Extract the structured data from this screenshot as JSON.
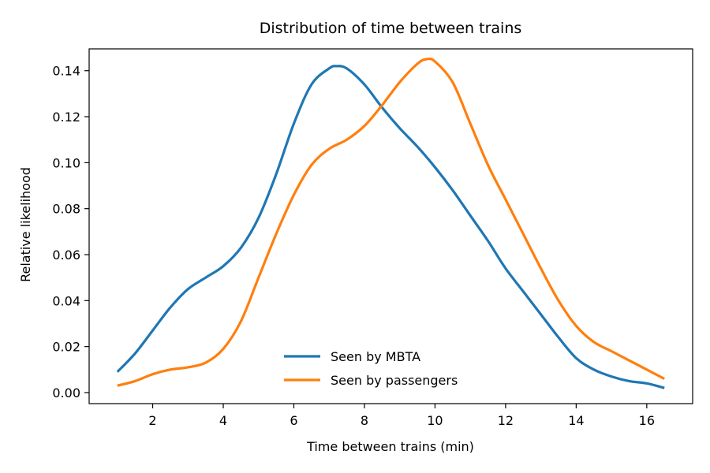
{
  "chart_data": {
    "type": "line",
    "title": "Distribution of time between trains",
    "xlabel": "Time between trains (min)",
    "ylabel": "Relative likelihood",
    "xlim": [
      0.2,
      17.3
    ],
    "ylim": [
      -0.0048,
      0.1495
    ],
    "x_ticks": [
      2,
      4,
      6,
      8,
      10,
      12,
      14,
      16
    ],
    "x_tick_labels": [
      "2",
      "4",
      "6",
      "8",
      "10",
      "12",
      "14",
      "16"
    ],
    "y_ticks": [
      0.0,
      0.02,
      0.04,
      0.06,
      0.08,
      0.1,
      0.12,
      0.14
    ],
    "y_tick_labels": [
      "0.00",
      "0.02",
      "0.04",
      "0.06",
      "0.08",
      "0.10",
      "0.12",
      "0.14"
    ],
    "grid": false,
    "legend_position": "lower center",
    "series": [
      {
        "name": "Seen by MBTA",
        "color": "#1f77b4",
        "x": [
          1.0,
          1.5,
          2.0,
          2.5,
          3.0,
          3.5,
          4.0,
          4.5,
          5.0,
          5.5,
          6.0,
          6.5,
          7.0,
          7.2,
          7.5,
          8.0,
          8.5,
          9.0,
          9.5,
          10.0,
          10.5,
          11.0,
          11.5,
          12.0,
          12.5,
          13.0,
          13.5,
          14.0,
          14.5,
          15.0,
          15.5,
          16.0,
          16.5
        ],
        "y": [
          0.009,
          0.017,
          0.027,
          0.037,
          0.045,
          0.05,
          0.055,
          0.063,
          0.076,
          0.095,
          0.117,
          0.134,
          0.141,
          0.142,
          0.141,
          0.134,
          0.124,
          0.115,
          0.107,
          0.098,
          0.088,
          0.077,
          0.066,
          0.054,
          0.044,
          0.034,
          0.024,
          0.015,
          0.01,
          0.007,
          0.005,
          0.004,
          0.002
        ]
      },
      {
        "name": "Seen by passengers",
        "color": "#ff7f0e",
        "x": [
          1.0,
          1.5,
          2.0,
          2.5,
          3.0,
          3.5,
          4.0,
          4.5,
          5.0,
          5.5,
          6.0,
          6.5,
          7.0,
          7.5,
          8.0,
          8.5,
          9.0,
          9.5,
          9.75,
          10.0,
          10.5,
          11.0,
          11.5,
          12.0,
          12.5,
          13.0,
          13.5,
          14.0,
          14.5,
          15.0,
          15.5,
          16.0,
          16.5
        ],
        "y": [
          0.003,
          0.005,
          0.008,
          0.01,
          0.011,
          0.013,
          0.019,
          0.031,
          0.05,
          0.069,
          0.086,
          0.099,
          0.106,
          0.11,
          0.116,
          0.125,
          0.135,
          0.143,
          0.145,
          0.144,
          0.135,
          0.117,
          0.099,
          0.084,
          0.069,
          0.054,
          0.04,
          0.029,
          0.022,
          0.018,
          0.014,
          0.01,
          0.006
        ]
      }
    ]
  }
}
